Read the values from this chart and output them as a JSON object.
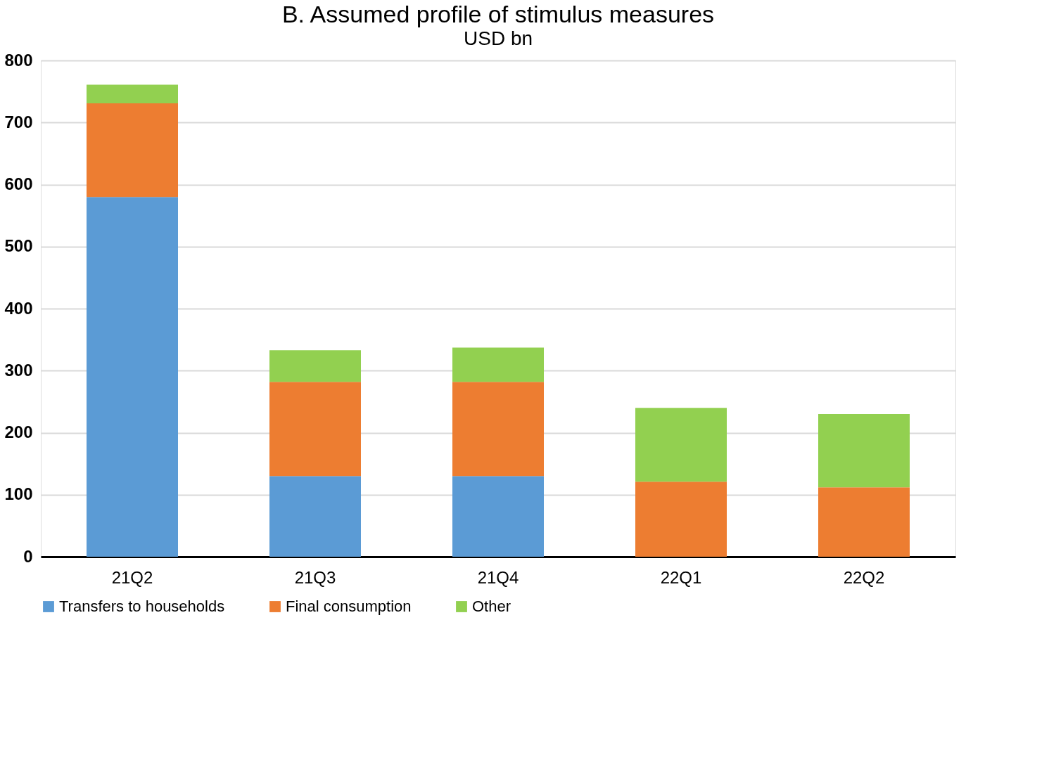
{
  "chart_data": {
    "type": "bar",
    "title": "B. Assumed profile of stimulus measures",
    "subtitle": "USD bn",
    "categories": [
      "21Q2",
      "21Q3",
      "21Q4",
      "22Q1",
      "22Q2"
    ],
    "stacked": true,
    "series": [
      {
        "name": "Transfers to households",
        "color": "#5b9bd5",
        "values": [
          580,
          130,
          130,
          0,
          0
        ]
      },
      {
        "name": "Final consumption",
        "color": "#ed7d31",
        "values": [
          151,
          152,
          152,
          121,
          112
        ]
      },
      {
        "name": "Other",
        "color": "#92d050",
        "values": [
          30,
          51,
          55,
          119,
          118
        ]
      }
    ],
    "ylim": [
      0,
      800
    ],
    "yticks": [
      0,
      100,
      200,
      300,
      400,
      500,
      600,
      700,
      800
    ],
    "grid": "y",
    "legend": "bottom"
  }
}
